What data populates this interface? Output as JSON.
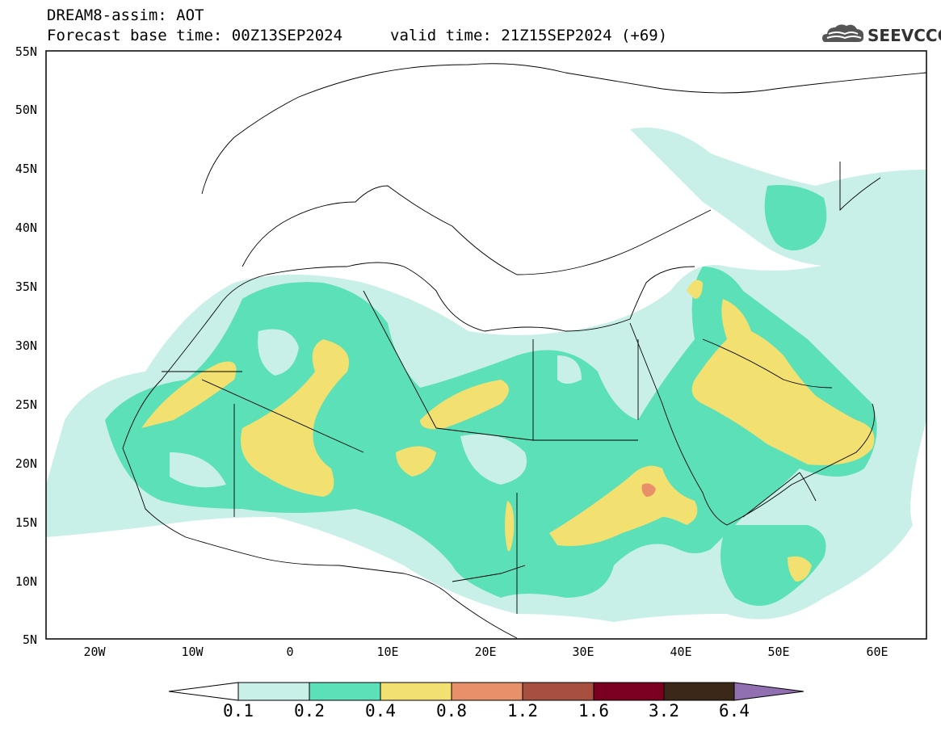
{
  "header": {
    "title": "DREAM8-assim: AOT",
    "base_time": "Forecast base time: 00Z13SEP2024",
    "valid_time": "valid time: 21Z15SEP2024 (+69)"
  },
  "logo": {
    "text": "SEEVCCC",
    "icon": "cloud-icon"
  },
  "map": {
    "variable": "AOT",
    "lat_labels": [
      "55N",
      "50N",
      "45N",
      "40N",
      "35N",
      "30N",
      "25N",
      "20N",
      "15N",
      "10N",
      "5N"
    ],
    "lon_labels": [
      "20W",
      "10W",
      "0",
      "10E",
      "20E",
      "30E",
      "40E",
      "50E",
      "60E"
    ]
  },
  "colorbar": {
    "thresholds": [
      "0.1",
      "0.2",
      "0.4",
      "0.8",
      "1.2",
      "1.6",
      "3.2",
      "6.4"
    ],
    "colors": [
      "#c8f0e8",
      "#5ce0b8",
      "#f2e070",
      "#e8906a",
      "#a85040",
      "#7a0020",
      "#3c2818",
      "#9070b0"
    ]
  }
}
